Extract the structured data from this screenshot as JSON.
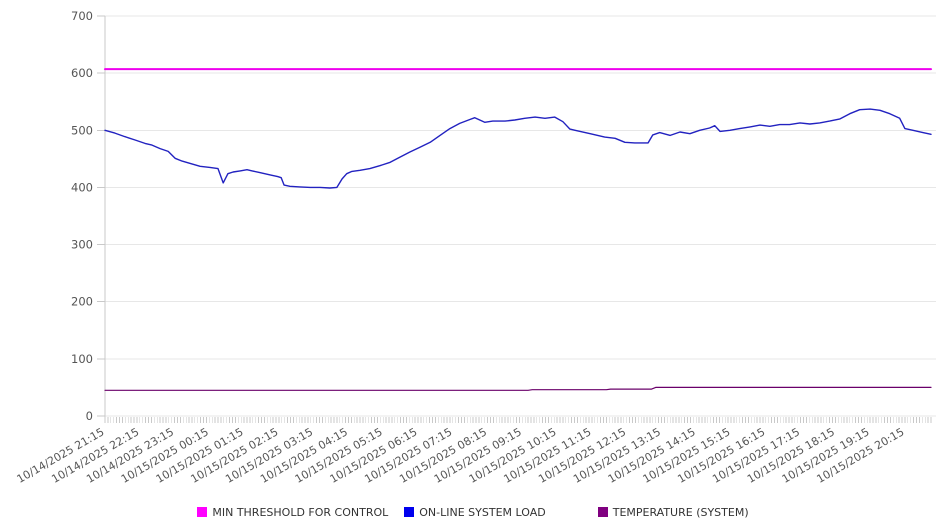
{
  "chart_data": {
    "type": "line",
    "title": "",
    "xlabel": "",
    "ylabel": "",
    "ylim": [
      0,
      700
    ],
    "y_ticks": [
      0,
      100,
      200,
      300,
      400,
      500,
      600,
      700
    ],
    "grid": true,
    "legend_position": "bottom",
    "x_span_minutes": 1425,
    "minor_tick_minutes": 5,
    "x_label_interval_min": 60,
    "x_labels": [
      "10/14/2025 21:15",
      "10/14/2025 22:15",
      "10/14/2025 23:15",
      "10/15/2025 00:15",
      "10/15/2025 01:15",
      "10/15/2025 02:15",
      "10/15/2025 03:15",
      "10/15/2025 04:15",
      "10/15/2025 05:15",
      "10/15/2025 06:15",
      "10/15/2025 07:15",
      "10/15/2025 08:15",
      "10/15/2025 09:15",
      "10/15/2025 10:15",
      "10/15/2025 11:15",
      "10/15/2025 12:15",
      "10/15/2025 13:15",
      "10/15/2025 14:15",
      "10/15/2025 15:15",
      "10/15/2025 16:15",
      "10/15/2025 17:15",
      "10/15/2025 18:15",
      "10/15/2025 19:15",
      "10/15/2025 20:15"
    ],
    "series": [
      {
        "name": "MIN THRESHOLD FOR CONTROL",
        "color": "#ee00ee",
        "width": 2,
        "points": [
          [
            0,
            607
          ],
          [
            1425,
            607
          ]
        ]
      },
      {
        "name": "ON-LINE SYSTEM LOAD",
        "color": "#2222c0",
        "width": 1.4,
        "points": [
          [
            0,
            500
          ],
          [
            17,
            495
          ],
          [
            34,
            489
          ],
          [
            52,
            483
          ],
          [
            69,
            477
          ],
          [
            81,
            474
          ],
          [
            95,
            468
          ],
          [
            109,
            463
          ],
          [
            121,
            451
          ],
          [
            133,
            446
          ],
          [
            147,
            442
          ],
          [
            164,
            437
          ],
          [
            181,
            435
          ],
          [
            195,
            433
          ],
          [
            204,
            408
          ],
          [
            212,
            424
          ],
          [
            221,
            427
          ],
          [
            233,
            429
          ],
          [
            245,
            431
          ],
          [
            254,
            429
          ],
          [
            267,
            426
          ],
          [
            285,
            422
          ],
          [
            298,
            419
          ],
          [
            304,
            417
          ],
          [
            309,
            404
          ],
          [
            319,
            402
          ],
          [
            336,
            401
          ],
          [
            354,
            400
          ],
          [
            371,
            400
          ],
          [
            388,
            399
          ],
          [
            400,
            400
          ],
          [
            409,
            415
          ],
          [
            417,
            424
          ],
          [
            426,
            428
          ],
          [
            440,
            430
          ],
          [
            457,
            433
          ],
          [
            474,
            438
          ],
          [
            492,
            444
          ],
          [
            509,
            453
          ],
          [
            526,
            462
          ],
          [
            543,
            470
          ],
          [
            561,
            479
          ],
          [
            578,
            491
          ],
          [
            595,
            503
          ],
          [
            612,
            512
          ],
          [
            630,
            519
          ],
          [
            638,
            522
          ],
          [
            655,
            514
          ],
          [
            669,
            516
          ],
          [
            690,
            516
          ],
          [
            707,
            518
          ],
          [
            724,
            521
          ],
          [
            742,
            523
          ],
          [
            759,
            521
          ],
          [
            776,
            523
          ],
          [
            790,
            515
          ],
          [
            802,
            502
          ],
          [
            811,
            500
          ],
          [
            837,
            494
          ],
          [
            862,
            488
          ],
          [
            880,
            486
          ],
          [
            897,
            479
          ],
          [
            914,
            478
          ],
          [
            937,
            478
          ],
          [
            945,
            492
          ],
          [
            957,
            496
          ],
          [
            975,
            491
          ],
          [
            992,
            497
          ],
          [
            1009,
            494
          ],
          [
            1026,
            500
          ],
          [
            1043,
            504
          ],
          [
            1052,
            508
          ],
          [
            1061,
            498
          ],
          [
            1078,
            500
          ],
          [
            1095,
            503
          ],
          [
            1113,
            506
          ],
          [
            1130,
            509
          ],
          [
            1147,
            507
          ],
          [
            1164,
            510
          ],
          [
            1181,
            510
          ],
          [
            1199,
            513
          ],
          [
            1216,
            511
          ],
          [
            1233,
            513
          ],
          [
            1250,
            516
          ],
          [
            1268,
            520
          ],
          [
            1285,
            529
          ],
          [
            1302,
            536
          ],
          [
            1320,
            537
          ],
          [
            1337,
            535
          ],
          [
            1354,
            529
          ],
          [
            1371,
            521
          ],
          [
            1380,
            503
          ],
          [
            1394,
            500
          ],
          [
            1411,
            496
          ],
          [
            1425,
            493
          ]
        ]
      },
      {
        "name": "TEMPERATURE (SYSTEM)",
        "color": "#6a006a",
        "width": 1.2,
        "points": [
          [
            0,
            45
          ],
          [
            400,
            45
          ],
          [
            730,
            45
          ],
          [
            737,
            46
          ],
          [
            865,
            46
          ],
          [
            872,
            47
          ],
          [
            943,
            47
          ],
          [
            950,
            50
          ],
          [
            1150,
            50
          ],
          [
            1425,
            50
          ]
        ]
      }
    ],
    "style": {
      "grid_color": "#e7e7e7",
      "axis_color": "#c9c9c9",
      "tick_color": "#c9c9c9",
      "label_color": "#555555",
      "legend_swatches": [
        "#ff00ff",
        "#0000ee",
        "#800080"
      ]
    }
  }
}
